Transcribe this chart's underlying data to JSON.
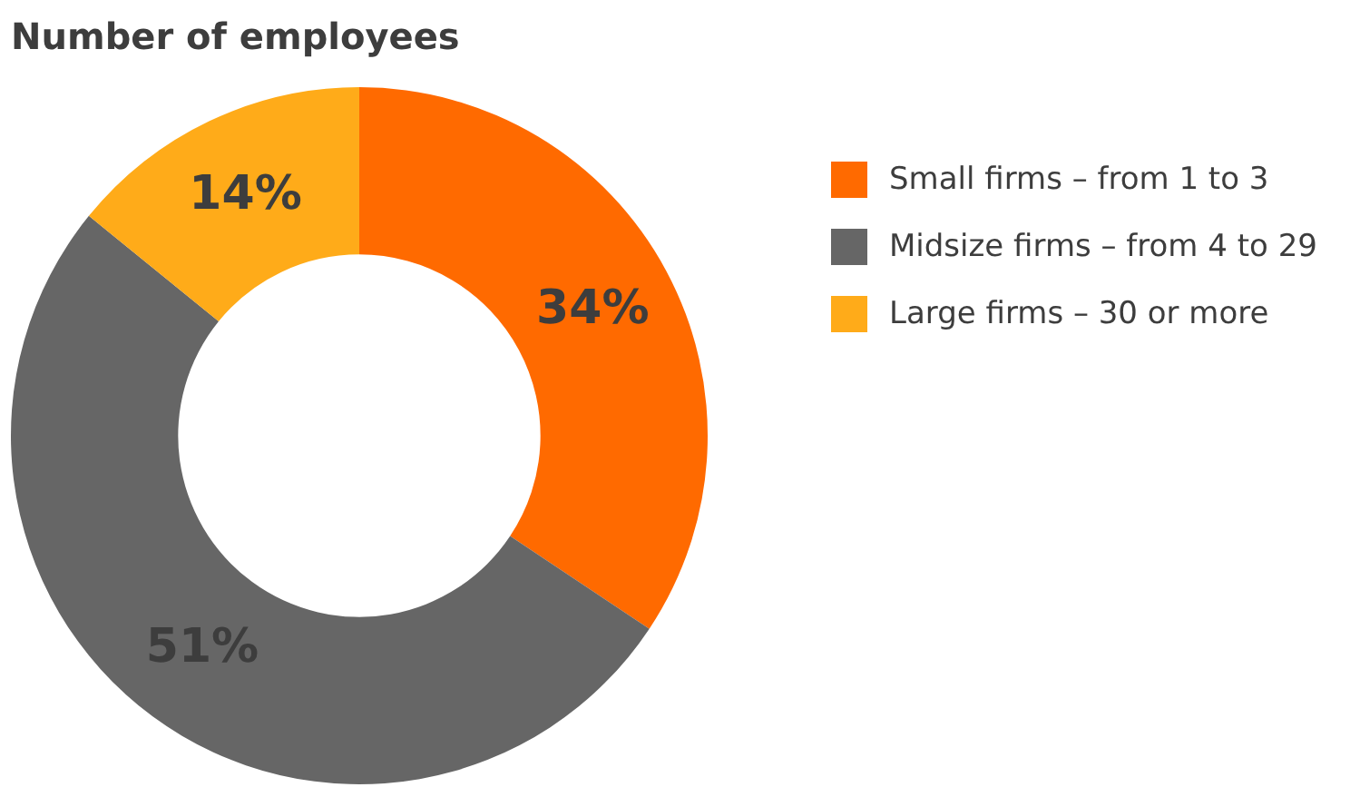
{
  "chart_data": {
    "type": "donut",
    "title": "Number of employees",
    "categories": [
      "Small firms – from 1 to 3",
      "Midsize firms – from 4 to 29",
      "Large firms – 30 or more"
    ],
    "values": [
      34,
      51,
      14
    ],
    "value_labels": [
      "34%",
      "51%",
      "14%"
    ],
    "colors": [
      "#ff6a00",
      "#666666",
      "#ffab19"
    ],
    "legend": "right"
  }
}
